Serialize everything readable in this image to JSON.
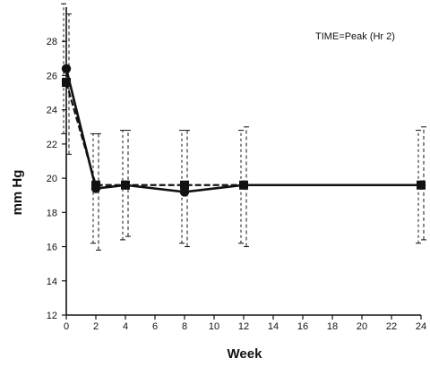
{
  "chart_data": {
    "type": "line",
    "title": "",
    "annotation": "TIME=Peak (Hr 2)",
    "xlabel": "Week",
    "ylabel": "mm Hg",
    "xlim": [
      0,
      24
    ],
    "ylim": [
      12,
      30
    ],
    "xticks": [
      0,
      2,
      4,
      6,
      8,
      10,
      12,
      14,
      16,
      18,
      20,
      22,
      24
    ],
    "yticks": [
      12,
      14,
      16,
      18,
      20,
      22,
      24,
      26,
      28
    ],
    "grid": false,
    "x": [
      0,
      2,
      4,
      8,
      12,
      24
    ],
    "series": [
      {
        "marker": "circle",
        "line_style": "solid",
        "values": [
          26.4,
          19.4,
          19.6,
          19.2,
          19.6,
          19.6
        ],
        "error_bars": [
          [
            22.6,
            30.2
          ],
          [
            16.2,
            22.6
          ],
          [
            16.4,
            22.8
          ],
          [
            16.2,
            22.8
          ],
          [
            16.2,
            22.8
          ],
          [
            16.2,
            22.8
          ]
        ]
      },
      {
        "marker": "square",
        "line_style": "dashed",
        "values": [
          25.6,
          19.6,
          19.6,
          19.6,
          19.6,
          19.6
        ],
        "error_bars": [
          [
            21.4,
            29.6
          ],
          [
            15.8,
            22.6
          ],
          [
            16.6,
            22.8
          ],
          [
            16.0,
            22.8
          ],
          [
            16.0,
            23.0
          ],
          [
            16.4,
            23.0
          ]
        ]
      }
    ]
  }
}
